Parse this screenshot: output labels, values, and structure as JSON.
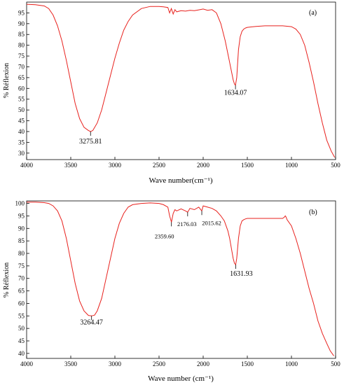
{
  "chart_data": [
    {
      "type": "line",
      "panel_label": "(a)",
      "xlabel": "Wave number(cm⁻¹)",
      "ylabel": "% Réflexion",
      "xlim": [
        4000,
        500
      ],
      "ylim": [
        27,
        100
      ],
      "x_ticks": [
        4000,
        3500,
        3000,
        2500,
        2000,
        1500,
        1000,
        500
      ],
      "y_ticks": [
        30,
        35,
        40,
        45,
        50,
        55,
        60,
        65,
        70,
        75,
        80,
        85,
        90,
        95
      ],
      "grid": false,
      "series": [
        {
          "color": "#e8211d",
          "x": [
            4000,
            3900,
            3800,
            3750,
            3700,
            3650,
            3600,
            3550,
            3500,
            3450,
            3400,
            3350,
            3300,
            3275.81,
            3250,
            3200,
            3150,
            3100,
            3050,
            3000,
            2950,
            2900,
            2850,
            2800,
            2700,
            2600,
            2500,
            2450,
            2400,
            2380,
            2360,
            2340,
            2320,
            2300,
            2250,
            2200,
            2150,
            2100,
            2050,
            2000,
            1950,
            1900,
            1850,
            1800,
            1750,
            1720,
            1700,
            1680,
            1660,
            1645,
            1634.07,
            1620,
            1600,
            1580,
            1560,
            1540,
            1520,
            1500,
            1450,
            1400,
            1300,
            1200,
            1100,
            1000,
            950,
            900,
            850,
            800,
            750,
            700,
            650,
            600,
            550,
            510
          ],
          "y": [
            99,
            98.8,
            98.2,
            97,
            94,
            89,
            82,
            73,
            63,
            53,
            46,
            42,
            40.5,
            40,
            40.5,
            44,
            50,
            58,
            66,
            74,
            81,
            87,
            91,
            94,
            97,
            98,
            98,
            97.8,
            97.5,
            95,
            97,
            94.5,
            96.5,
            95.5,
            96,
            95.8,
            96.2,
            96,
            96.4,
            96.8,
            96.2,
            96.5,
            95,
            90,
            82,
            76,
            72,
            68,
            64,
            62,
            61.5,
            65,
            78,
            84,
            86.5,
            87.5,
            88,
            88.3,
            88.5,
            88.7,
            89,
            89,
            89,
            88.6,
            87.5,
            85,
            80,
            72,
            63,
            53,
            44,
            36,
            31,
            28
          ]
        }
      ],
      "annotations": [
        {
          "text": "3275.81",
          "x": 3275.81,
          "y": 40
        },
        {
          "text": "1634.07",
          "x": 1634.07,
          "y": 61.5
        }
      ]
    },
    {
      "type": "line",
      "panel_label": "(b)",
      "xlabel": "Wave number (cm⁻¹)",
      "ylabel": "% Réflexion",
      "xlim": [
        4000,
        500
      ],
      "ylim": [
        38,
        101
      ],
      "x_ticks": [
        4000,
        3500,
        3000,
        2500,
        2000,
        1500,
        1000,
        500
      ],
      "y_ticks": [
        40,
        45,
        50,
        55,
        60,
        65,
        70,
        75,
        80,
        85,
        90,
        95,
        100
      ],
      "grid": false,
      "series": [
        {
          "color": "#e8211d",
          "x": [
            4000,
            3900,
            3800,
            3750,
            3700,
            3650,
            3600,
            3550,
            3500,
            3450,
            3400,
            3350,
            3300,
            3264.47,
            3230,
            3200,
            3150,
            3100,
            3050,
            3000,
            2950,
            2900,
            2850,
            2800,
            2700,
            2600,
            2500,
            2450,
            2400,
            2380,
            2359.6,
            2340,
            2320,
            2300,
            2250,
            2200,
            2176.03,
            2150,
            2100,
            2050,
            2015.62,
            2000,
            1950,
            1900,
            1850,
            1800,
            1760,
            1720,
            1700,
            1680,
            1660,
            1645,
            1631.93,
            1620,
            1600,
            1580,
            1560,
            1540,
            1520,
            1500,
            1450,
            1400,
            1300,
            1200,
            1100,
            1080,
            1070,
            1060,
            1050,
            1000,
            950,
            900,
            850,
            800,
            750,
            700,
            650,
            600,
            560,
            520
          ],
          "y": [
            100.5,
            100.5,
            100.3,
            100,
            99,
            97,
            93,
            86,
            77,
            68,
            61,
            57,
            55.2,
            55,
            55.3,
            57,
            62,
            70,
            78,
            86,
            92,
            96,
            98.5,
            99.5,
            100,
            100.2,
            100,
            99.5,
            98.5,
            95,
            92.5,
            96,
            97.5,
            97,
            97.8,
            97,
            96.5,
            98,
            97.5,
            98.5,
            97,
            99,
            98.5,
            98,
            97,
            95,
            93,
            89,
            86,
            82,
            78,
            76,
            75.5,
            78,
            86,
            91,
            93,
            93.5,
            93.8,
            94,
            94,
            94,
            94,
            94,
            94,
            94.5,
            95,
            94.5,
            93.5,
            91,
            86,
            80,
            73,
            66,
            60,
            53,
            48,
            44,
            41,
            39
          ]
        }
      ],
      "annotations": [
        {
          "text": "3264.47",
          "x": 3264.47,
          "y": 55
        },
        {
          "text": "2359.60",
          "x": 2359.6,
          "y": 92.5
        },
        {
          "text": "2176.03",
          "x": 2176.03,
          "y": 96.5
        },
        {
          "text": "2015.62",
          "x": 2015.62,
          "y": 97
        },
        {
          "text": "1631.93",
          "x": 1631.93,
          "y": 75.5
        }
      ]
    }
  ]
}
